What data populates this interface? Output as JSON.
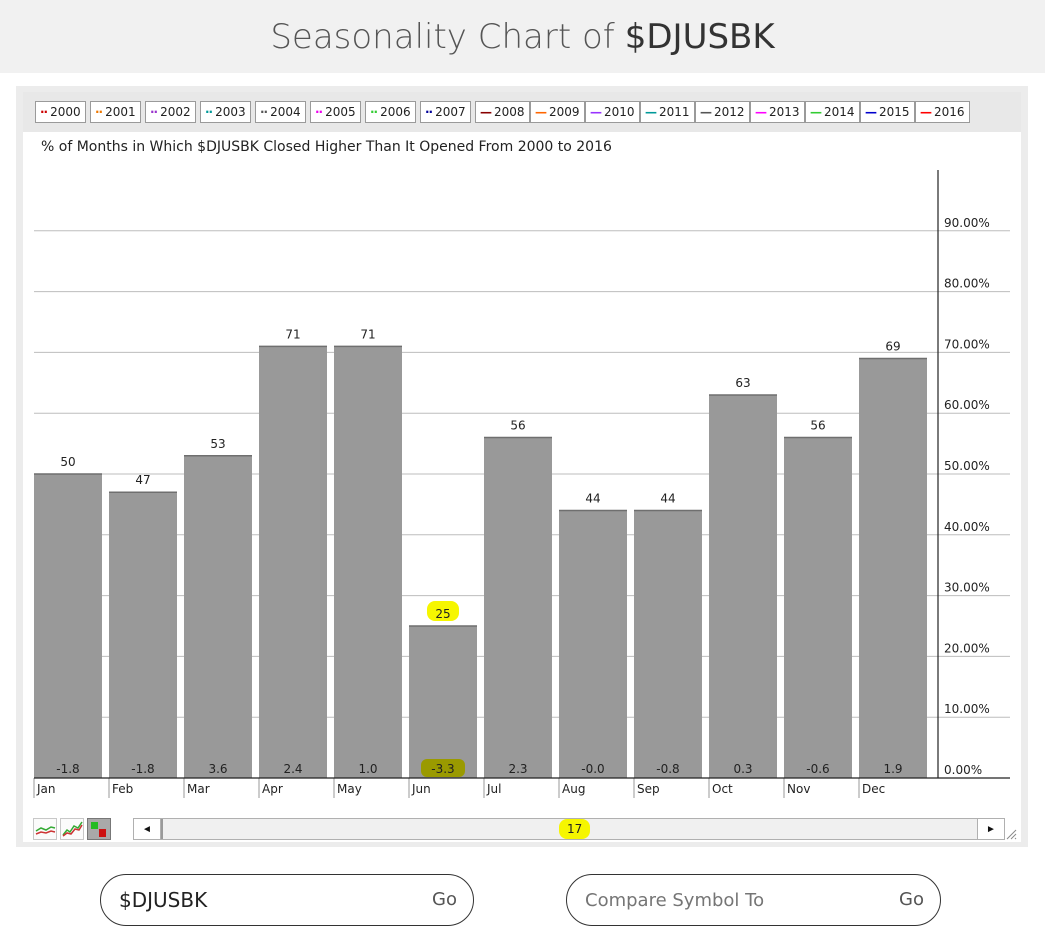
{
  "header": {
    "title_prefix": "Seasonality Chart of",
    "symbol": "$DJUSBK"
  },
  "legend": {
    "items": [
      {
        "label": "2000",
        "color": "#cc0000",
        "style": "dotted"
      },
      {
        "label": "2001",
        "color": "#ee7700",
        "style": "dotted"
      },
      {
        "label": "2002",
        "color": "#9933cc",
        "style": "dotted"
      },
      {
        "label": "2003",
        "color": "#009999",
        "style": "dotted"
      },
      {
        "label": "2004",
        "color": "#555555",
        "style": "dotted"
      },
      {
        "label": "2005",
        "color": "#ee00ee",
        "style": "dotted"
      },
      {
        "label": "2006",
        "color": "#33cc33",
        "style": "dotted"
      },
      {
        "label": "2007",
        "color": "#000099",
        "style": "dotted"
      },
      {
        "label": "2008",
        "color": "#880000",
        "style": "solid"
      },
      {
        "label": "2009",
        "color": "#ff6600",
        "style": "solid"
      },
      {
        "label": "2010",
        "color": "#9933ff",
        "style": "solid"
      },
      {
        "label": "2011",
        "color": "#009999",
        "style": "solid"
      },
      {
        "label": "2012",
        "color": "#555555",
        "style": "solid"
      },
      {
        "label": "2013",
        "color": "#ff00ff",
        "style": "solid"
      },
      {
        "label": "2014",
        "color": "#33cc33",
        "style": "solid"
      },
      {
        "label": "2015",
        "color": "#0000cc",
        "style": "solid"
      },
      {
        "label": "2016",
        "color": "#ff0000",
        "style": "solid"
      }
    ]
  },
  "chart_data": {
    "type": "bar",
    "title": "% of Months in Which $DJUSBK Closed Higher Than It Opened From 2000 to 2016",
    "xlabel": "",
    "ylabel": "",
    "categories": [
      "Jan",
      "Feb",
      "Mar",
      "Apr",
      "May",
      "Jun",
      "Jul",
      "Aug",
      "Sep",
      "Oct",
      "Nov",
      "Dec"
    ],
    "series": [
      {
        "values": [
          50,
          47,
          53,
          71,
          71,
          25,
          56,
          44,
          44,
          63,
          56,
          69
        ]
      },
      {
        "values": [
          "-1.8",
          "-1.8",
          "3.6",
          "2.4",
          "1.0",
          "-3.3",
          "2.3",
          "-0.0",
          "-0.8",
          "0.3",
          "-0.6",
          "1.9"
        ]
      }
    ],
    "ylim": [
      0,
      100
    ],
    "ytick_labels": [
      "0.00%",
      "10.00%",
      "20.00%",
      "30.00%",
      "40.00%",
      "50.00%",
      "60.00%",
      "70.00%",
      "80.00%",
      "90.00%"
    ],
    "grid": true,
    "y_axis_position": "right",
    "highlighted_category": "Jun",
    "bar_color": "#999999"
  },
  "scroll": {
    "count": "17",
    "left_arrow": "◄",
    "right_arrow": "►"
  },
  "symbol_input": {
    "value": "$DJUSBK",
    "go": "Go"
  },
  "compare_input": {
    "placeholder": "Compare Symbol To",
    "go": "Go"
  },
  "colors": {
    "highlight": "#f6f600",
    "highlight_dark": "#9a9a00"
  }
}
